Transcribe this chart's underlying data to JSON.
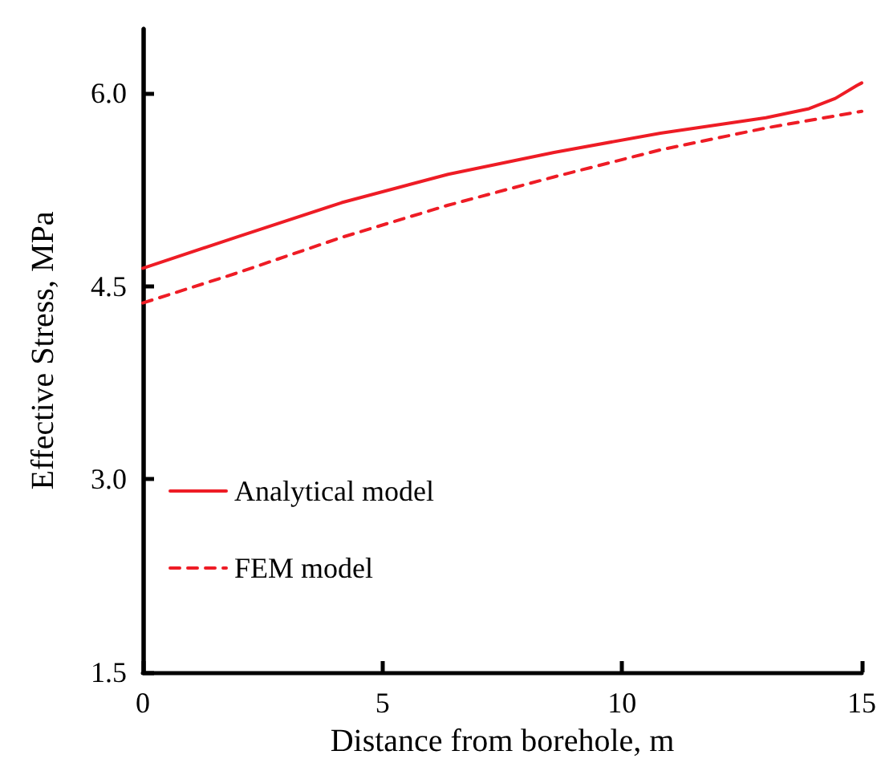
{
  "chart_data": {
    "type": "line",
    "xlabel": "Distance from borehole, m",
    "ylabel": "Effective Stress, MPa",
    "xlim": [
      0,
      15
    ],
    "xticks": [
      0,
      5,
      10,
      15
    ],
    "ylim": [
      1.5,
      6.5
    ],
    "yticks": [
      {
        "value": 1.5,
        "label": "1.5"
      },
      {
        "value": 3,
        "label": "3.0"
      },
      {
        "value": 4.5,
        "label": "4.5"
      },
      {
        "value": 6,
        "label": "6.0"
      }
    ],
    "legend": "bottom left",
    "grid": false,
    "marker": "none",
    "series": [
      {
        "name": "Analytical model",
        "color": "#ee1c25",
        "line_style": "solid",
        "x": [
          0,
          1.94,
          4.15,
          6.37,
          8.58,
          10.8,
          13.0,
          13.9,
          14.45,
          14.9,
          15
        ],
        "values": [
          4.64,
          4.88,
          5.15,
          5.37,
          5.54,
          5.69,
          5.81,
          5.88,
          5.96,
          6.06,
          6.08
        ]
      },
      {
        "name": "FEM model",
        "color": "#ee1c25",
        "line_style": "dashed",
        "x": [
          0,
          1.94,
          4.15,
          6.37,
          8.58,
          10.8,
          13.0,
          15
        ],
        "values": [
          4.37,
          4.6,
          4.88,
          5.13,
          5.35,
          5.56,
          5.73,
          5.86
        ]
      }
    ]
  }
}
